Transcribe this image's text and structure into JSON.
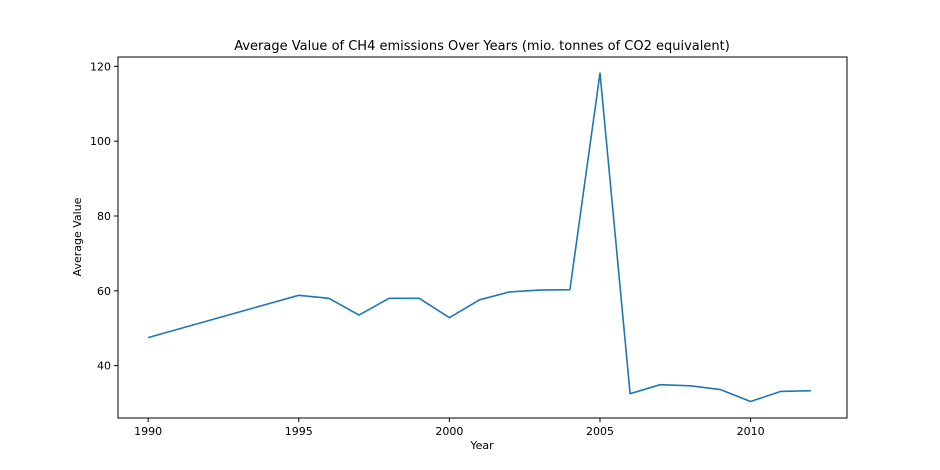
{
  "chart_data": {
    "type": "line",
    "title": "Average Value of CH4 emissions Over Years (mio. tonnes of CO2 equivalent)",
    "xlabel": "Year",
    "ylabel": "Average Value",
    "xlim": [
      1989,
      2013.2
    ],
    "ylim": [
      26,
      122.5
    ],
    "xticks": [
      1990,
      1995,
      2000,
      2005,
      2010
    ],
    "yticks": [
      40,
      60,
      80,
      100,
      120
    ],
    "grid": false,
    "legend": "none",
    "series": [
      {
        "color": "#1f77b4",
        "x": [
          1990,
          1995,
          1996,
          1997,
          1998,
          1999,
          2000,
          2001,
          2002,
          2003,
          2004,
          2005,
          2006,
          2007,
          2008,
          2009,
          2010,
          2011,
          2012
        ],
        "y": [
          47.5,
          58.8,
          58.0,
          53.5,
          58.0,
          58.0,
          52.8,
          57.6,
          59.7,
          60.2,
          60.3,
          118.2,
          32.5,
          34.9,
          34.6,
          33.6,
          30.4,
          33.1,
          33.3
        ]
      }
    ]
  }
}
